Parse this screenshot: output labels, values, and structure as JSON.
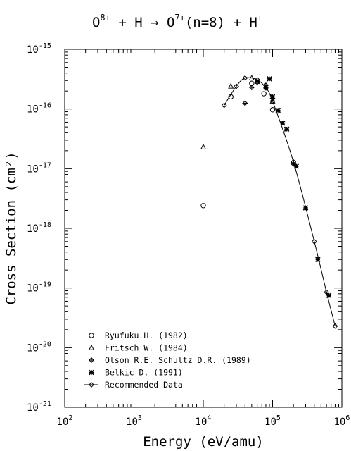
{
  "chart_data": {
    "type": "scatter",
    "title": {
      "prefix": "O",
      "ion_charge": "8+",
      "reaction_mid": " + H → O",
      "product_charge": "7+",
      "product_state": "(n=8) + H",
      "proton_charge": "+"
    },
    "xlabel": "Energy (eV/amu)",
    "ylabel": "Cross Section (cm²)",
    "x_scale": "log",
    "y_scale": "log",
    "xlim": [
      100,
      1000000
    ],
    "ylim": [
      1e-21,
      1e-15
    ],
    "x_ticks": [
      {
        "value": 100,
        "base": "10",
        "exp": "2"
      },
      {
        "value": 1000,
        "base": "10",
        "exp": "3"
      },
      {
        "value": 10000,
        "base": "10",
        "exp": "4"
      },
      {
        "value": 100000,
        "base": "10",
        "exp": "5"
      },
      {
        "value": 1000000,
        "base": "10",
        "exp": "6"
      }
    ],
    "y_ticks": [
      {
        "value": 1e-15,
        "base": "10",
        "exp": "-15"
      },
      {
        "value": 1e-16,
        "base": "10",
        "exp": "-16"
      },
      {
        "value": 1e-17,
        "base": "10",
        "exp": "-17"
      },
      {
        "value": 1e-18,
        "base": "10",
        "exp": "-18"
      },
      {
        "value": 1e-19,
        "base": "10",
        "exp": "-19"
      },
      {
        "value": 1e-20,
        "base": "10",
        "exp": "-20"
      },
      {
        "value": 1e-21,
        "base": "10",
        "exp": "-21"
      }
    ],
    "grid": false,
    "legend_position": "bottom-left",
    "series": [
      {
        "name": "Ryufuku H. (1982)",
        "marker": "circle",
        "points": [
          [
            10000,
            2.4e-18
          ],
          [
            25000,
            1.6e-16
          ],
          [
            50000,
            2.7e-16
          ],
          [
            75000,
            1.8e-16
          ],
          [
            100000,
            9.7e-17
          ],
          [
            200000,
            1.25e-17
          ]
        ]
      },
      {
        "name": "Fritsch W. (1984)",
        "marker": "triangle",
        "points": [
          [
            10000,
            2.3e-17
          ],
          [
            25000,
            2.4e-16
          ],
          [
            50000,
            3.3e-16
          ],
          [
            100000,
            1.35e-16
          ]
        ]
      },
      {
        "name": "Olson R.E. Schultz D.R. (1989)",
        "marker": "plus-diamond",
        "points": [
          [
            40000,
            1.25e-16
          ],
          [
            50000,
            2.3e-16
          ],
          [
            60000,
            2.8e-16
          ],
          [
            80000,
            2.5e-16
          ],
          [
            100000,
            1.5e-16
          ],
          [
            200000,
            1.2e-17
          ]
        ]
      },
      {
        "name": "Belkic D. (1991)",
        "marker": "star",
        "points": [
          [
            60000,
            2.9e-16
          ],
          [
            80000,
            2.3e-16
          ],
          [
            90000,
            3.2e-16
          ],
          [
            100000,
            1.6e-16
          ],
          [
            120000,
            9.5e-17
          ],
          [
            140000,
            5.8e-17
          ],
          [
            160000,
            4.6e-17
          ],
          [
            220000,
            1.1e-17
          ],
          [
            300000,
            2.2e-18
          ],
          [
            450000,
            3e-19
          ],
          [
            650000,
            7.5e-20
          ]
        ]
      },
      {
        "name": "Recommended Data",
        "marker": "diamond",
        "line": true,
        "points": [
          [
            20000,
            1.15e-16
          ],
          [
            30000,
            2.4e-16
          ],
          [
            40000,
            3.3e-16
          ],
          [
            60000,
            3.1e-16
          ],
          [
            80000,
            2.25e-16
          ],
          [
            100000,
            1.35e-16
          ],
          [
            200000,
            1.3e-17
          ],
          [
            400000,
            6e-19
          ],
          [
            600000,
            8.5e-20
          ],
          [
            800000,
            2.3e-20
          ]
        ]
      }
    ]
  }
}
